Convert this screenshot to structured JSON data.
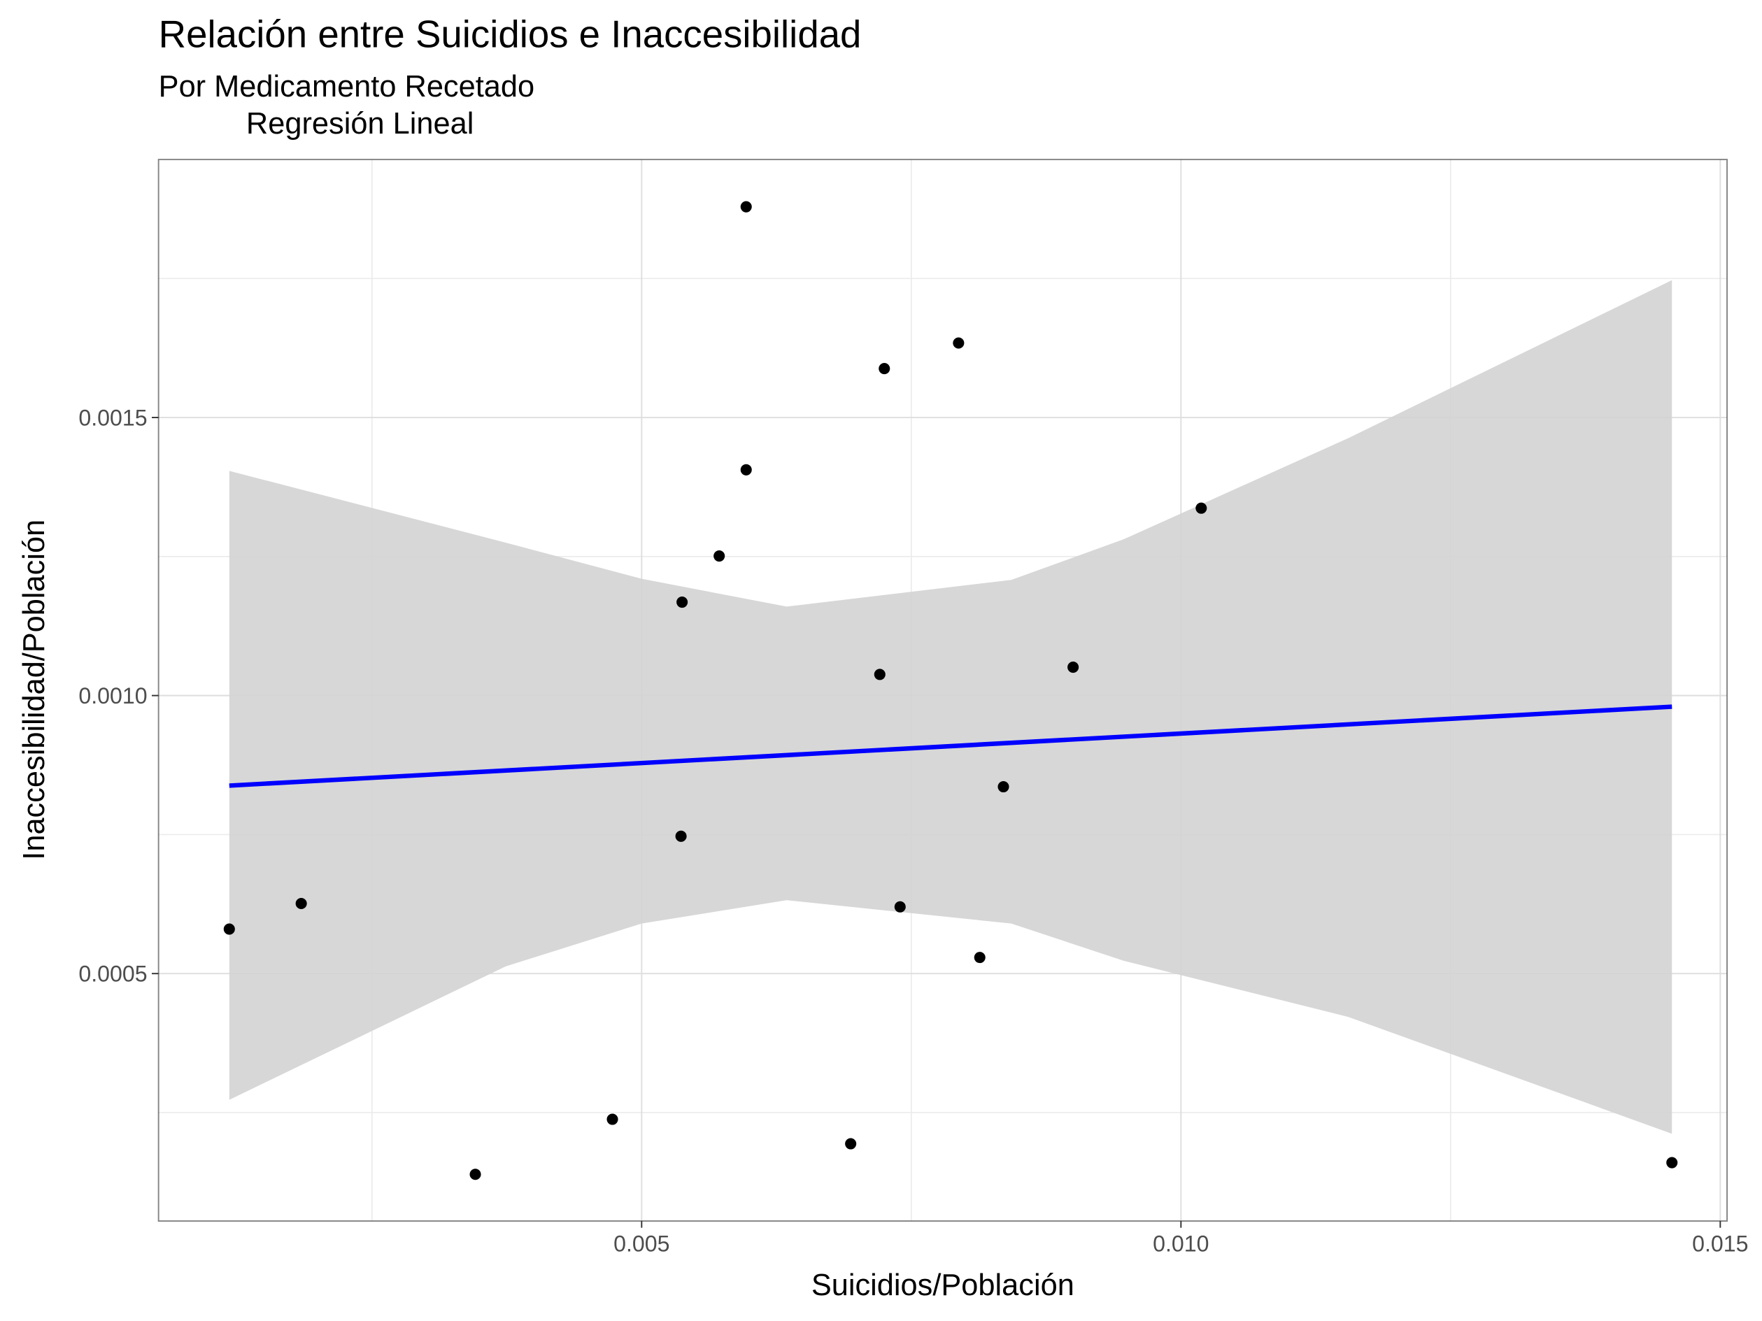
{
  "chart_data": {
    "type": "scatter",
    "title": "Relación entre Suicidios e Inaccesibilidad",
    "subtitle": [
      "Por Medicamento Recetado",
      "Regresión Lineal"
    ],
    "x_label": "Suicidios/Población",
    "y_label": "Inaccesibilidad/Población",
    "xlim": [
      0.000521,
      0.015063
    ],
    "ylim": [
      5.5e-05,
      0.001964
    ],
    "xticks": [
      0.005,
      {
        "value": 0.01,
        "label": "0.010"
      },
      0.015
    ],
    "yticks": [
      0.0005,
      {
        "value": 0.001,
        "label": "0.0010"
      },
      0.0015
    ],
    "x_minor_ticks": [
      0.0025,
      0.0075,
      0.0125
    ],
    "y_minor_ticks": [
      0.00025,
      0.00075,
      0.00125,
      0.00175
    ],
    "grid": true,
    "series": [
      {
        "color": "#000000",
        "x": [
          0.001177,
          0.001844,
          0.003458,
          0.004729,
          0.005375,
          0.005365,
          0.005719,
          0.005969,
          0.005969,
          0.006938,
          0.007208,
          0.00725,
          0.007396,
          0.007938,
          0.008135,
          0.008354,
          0.009,
          0.010188,
          0.014552
        ],
        "values": [
          0.00058,
          0.000626,
          0.000139,
          0.000238,
          0.001168,
          0.000747,
          0.001251,
          0.001879,
          0.001406,
          0.000194,
          0.001038,
          0.001588,
          0.00062,
          0.001634,
          0.000529,
          0.000836,
          0.001051,
          0.001337,
          0.00016
        ]
      }
    ],
    "fit": {
      "color": "#0000ff",
      "x": [
        0.001177,
        0.014552
      ],
      "values": [
        0.000838,
        0.00098
      ]
    },
    "band": {
      "color": "#d3d3d3",
      "x": [
        0.001177,
        0.00374,
        0.005,
        0.006344,
        0.008427,
        0.009469,
        0.011552,
        0.014552
      ],
      "upper": [
        0.001404,
        0.001275,
        0.00121,
        0.00116,
        0.001208,
        0.001281,
        0.001463,
        0.001747
      ],
      "lower": [
        0.000273,
        0.000513,
        0.00059,
        0.000632,
        0.00059,
        0.000523,
        0.000422,
        0.000212
      ]
    }
  }
}
